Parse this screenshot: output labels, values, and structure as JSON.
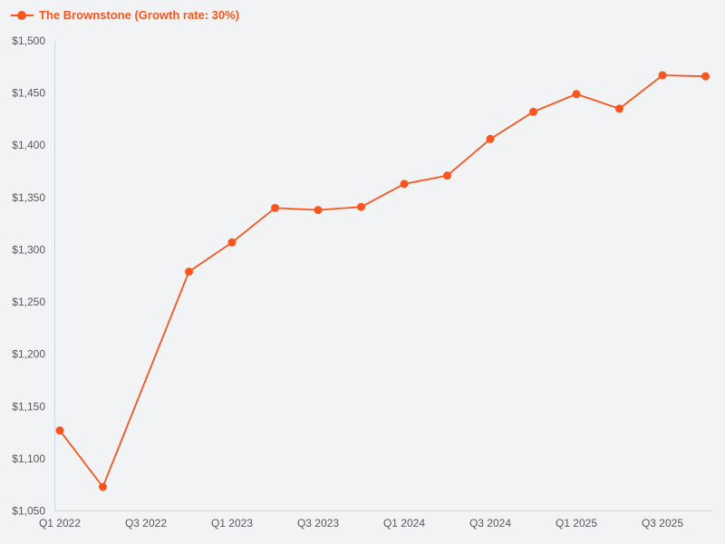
{
  "page": {
    "background": "#f2f3f5"
  },
  "legend": {
    "label": "The Brownstone (Growth rate: 30%)"
  },
  "chart_data": {
    "type": "line",
    "title": "The Brownstone (Growth rate: 30%)",
    "x": [
      "Q1 2022",
      "Q2 2022",
      "Q3 2022",
      "Q4 2022",
      "Q1 2023",
      "Q2 2023",
      "Q3 2023",
      "Q4 2023",
      "Q1 2024",
      "Q2 2024",
      "Q3 2024",
      "Q4 2024",
      "Q1 2025",
      "Q2 2025",
      "Q3 2025",
      "Q4 2025"
    ],
    "series": [
      {
        "name": "The Brownstone (Growth rate: 30%)",
        "values": [
          1127,
          1073,
          null,
          1279,
          1307,
          1340,
          1338,
          1341,
          1363,
          1371,
          1406,
          1432,
          1449,
          1435,
          1467,
          1466
        ]
      }
    ],
    "x_tick_labels": [
      "Q1 2022",
      "Q3 2022",
      "Q1 2023",
      "Q3 2023",
      "Q1 2024",
      "Q3 2024",
      "Q1 2025",
      "Q3 2025"
    ],
    "y_tick_labels": [
      "$1,050",
      "$1,100",
      "$1,150",
      "$1,200",
      "$1,250",
      "$1,300",
      "$1,350",
      "$1,400",
      "$1,450",
      "$1,500"
    ],
    "ylim": [
      1050,
      1500
    ],
    "ylabel": "",
    "xlabel": "",
    "grid": false,
    "legend_position": "top-left",
    "marker": "circle",
    "colors": {
      "series": "#fa551e",
      "axis_line": "#ccd6eb",
      "tick_label": "#55585e",
      "background": "#f2f3f5"
    }
  }
}
